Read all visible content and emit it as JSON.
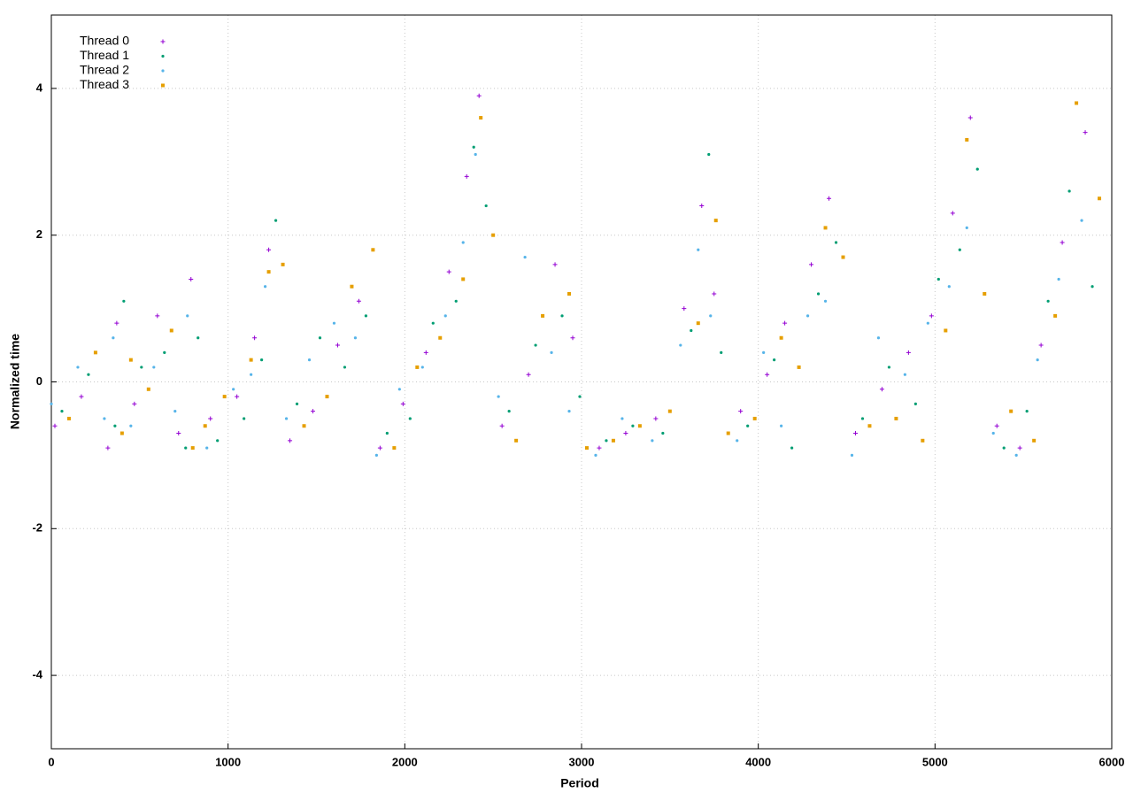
{
  "chart_data": {
    "type": "scatter",
    "x_label": "Period",
    "y_label": "Normalized time",
    "xlim": [
      0,
      6000
    ],
    "ylim": [
      -5,
      5
    ],
    "xticks": [
      0,
      1000,
      2000,
      3000,
      4000,
      5000,
      6000
    ],
    "yticks": [
      -4,
      -2,
      0,
      2,
      4
    ],
    "grid": true,
    "legend": "top-left",
    "series": [
      {
        "name": "Thread 0",
        "color": "#9400d3",
        "marker": "plus",
        "x": [
          20,
          170,
          320,
          370,
          470,
          600,
          720,
          790,
          900,
          1050,
          1150,
          1230,
          1350,
          1480,
          1620,
          1740,
          1860,
          1990,
          2120,
          2250,
          2350,
          2420,
          2550,
          2700,
          2850,
          2950,
          3100,
          3250,
          3420,
          3580,
          3680,
          3750,
          3900,
          4050,
          4150,
          4300,
          4400,
          4550,
          4700,
          4850,
          4980,
          5100,
          5200,
          5350,
          5480,
          5600,
          5720,
          5850
        ],
        "values": [
          -0.6,
          -0.2,
          -0.9,
          0.8,
          -0.3,
          0.9,
          -0.7,
          1.4,
          -0.5,
          -0.2,
          0.6,
          1.8,
          -0.8,
          -0.4,
          0.5,
          1.1,
          -0.9,
          -0.3,
          0.4,
          1.5,
          2.8,
          3.9,
          -0.6,
          0.1,
          1.6,
          0.6,
          -0.9,
          -0.7,
          -0.5,
          1.0,
          2.4,
          1.2,
          -0.4,
          0.1,
          0.8,
          1.6,
          2.5,
          -0.7,
          -0.1,
          0.4,
          0.9,
          2.3,
          3.6,
          -0.6,
          -0.9,
          0.5,
          1.9,
          3.4
        ]
      },
      {
        "name": "Thread 1",
        "color": "#009e73",
        "marker": "dot",
        "x": [
          60,
          210,
          360,
          410,
          510,
          640,
          760,
          830,
          940,
          1090,
          1190,
          1270,
          1390,
          1520,
          1660,
          1780,
          1900,
          2030,
          2160,
          2290,
          2390,
          2460,
          2590,
          2740,
          2890,
          2990,
          3140,
          3290,
          3460,
          3620,
          3720,
          3790,
          3940,
          4090,
          4190,
          4340,
          4440,
          4590,
          4740,
          4890,
          5020,
          5140,
          5240,
          5390,
          5520,
          5640,
          5760,
          5890
        ],
        "values": [
          -0.4,
          0.1,
          -0.6,
          1.1,
          0.2,
          0.4,
          -0.9,
          0.6,
          -0.8,
          -0.5,
          0.3,
          2.2,
          -0.3,
          0.6,
          0.2,
          0.9,
          -0.7,
          -0.5,
          0.8,
          1.1,
          3.2,
          2.4,
          -0.4,
          0.5,
          0.9,
          -0.2,
          -0.8,
          -0.6,
          -0.7,
          0.7,
          3.1,
          0.4,
          -0.6,
          0.3,
          -0.9,
          1.2,
          1.9,
          -0.5,
          0.2,
          -0.3,
          1.4,
          1.8,
          2.9,
          -0.9,
          -0.4,
          1.1,
          2.6,
          1.3
        ]
      },
      {
        "name": "Thread 2",
        "color": "#56b4e9",
        "marker": "dot",
        "x": [
          0,
          150,
          300,
          350,
          450,
          580,
          700,
          770,
          880,
          1030,
          1130,
          1210,
          1330,
          1460,
          1600,
          1720,
          1840,
          1970,
          2100,
          2230,
          2330,
          2400,
          2530,
          2680,
          2830,
          2930,
          3080,
          3230,
          3400,
          3560,
          3660,
          3730,
          3880,
          4030,
          4130,
          4280,
          4380,
          4530,
          4680,
          4830,
          4960,
          5080,
          5180,
          5330,
          5460,
          5580,
          5700,
          5830
        ],
        "values": [
          -0.3,
          0.2,
          -0.5,
          0.6,
          -0.6,
          0.2,
          -0.4,
          0.9,
          -0.9,
          -0.1,
          0.1,
          1.3,
          -0.5,
          0.3,
          0.8,
          0.6,
          -1.0,
          -0.1,
          0.2,
          0.9,
          1.9,
          3.1,
          -0.2,
          1.7,
          0.4,
          -0.4,
          -1.0,
          -0.5,
          -0.8,
          0.5,
          1.8,
          0.9,
          -0.8,
          0.4,
          -0.6,
          0.9,
          1.1,
          -1.0,
          0.6,
          0.1,
          0.8,
          1.3,
          2.1,
          -0.7,
          -1.0,
          0.3,
          1.4,
          2.2
        ]
      },
      {
        "name": "Thread 3",
        "color": "#e69f00",
        "marker": "square",
        "x": [
          100,
          250,
          400,
          450,
          550,
          680,
          800,
          870,
          980,
          1130,
          1230,
          1310,
          1430,
          1560,
          1700,
          1820,
          1940,
          2070,
          2200,
          2330,
          2430,
          2500,
          2630,
          2780,
          2930,
          3030,
          3180,
          3330,
          3500,
          3660,
          3760,
          3830,
          3980,
          4130,
          4230,
          4380,
          4480,
          4630,
          4780,
          4930,
          5060,
          5180,
          5280,
          5430,
          5560,
          5680,
          5800,
          5930
        ],
        "values": [
          -0.5,
          0.4,
          -0.7,
          0.3,
          -0.1,
          0.7,
          -0.9,
          -0.6,
          -0.2,
          0.3,
          1.5,
          1.6,
          -0.6,
          -0.2,
          1.3,
          1.8,
          -0.9,
          0.2,
          0.6,
          1.4,
          3.6,
          2.0,
          -0.8,
          0.9,
          1.2,
          -0.9,
          -0.8,
          -0.6,
          -0.4,
          0.8,
          2.2,
          -0.7,
          -0.5,
          0.6,
          0.2,
          2.1,
          1.7,
          -0.6,
          -0.5,
          -0.8,
          0.7,
          3.3,
          1.2,
          -0.4,
          -0.8,
          0.9,
          3.8,
          2.5
        ]
      }
    ]
  }
}
